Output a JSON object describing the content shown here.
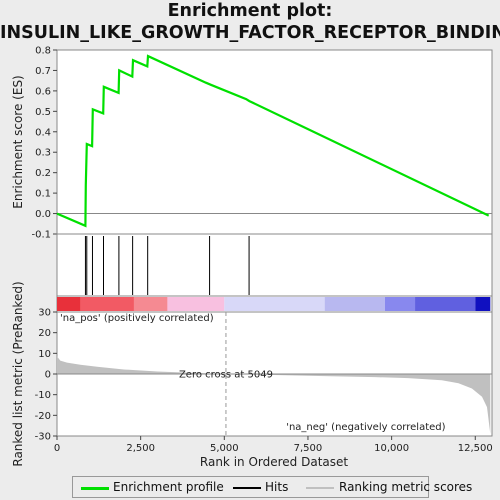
{
  "title": {
    "line1": "Enrichment plot:",
    "line2": "INSULIN_LIKE_GROWTH_FACTOR_RECEPTOR_BINDING"
  },
  "legend": {
    "enrichment_label": "Enrichment profile",
    "hits_label": "Hits",
    "ranking_label": "Ranking metric scores",
    "enrichment_color": "#00e000",
    "hits_color": "#000000",
    "ranking_color": "#c0c0c0"
  },
  "chart_data": [
    {
      "type": "line",
      "name": "enrichment-profile",
      "ylabel": "Enrichment score (ES)",
      "xlim": [
        0,
        13000
      ],
      "ylim": [
        -0.1,
        0.8
      ],
      "yticks": [
        -0.1,
        0.0,
        0.1,
        0.2,
        0.3,
        0.4,
        0.5,
        0.6,
        0.7,
        0.8
      ],
      "ytick_labels": [
        "-0.1",
        "0.0",
        "0.1",
        "0.2",
        "0.3",
        "0.4",
        "0.5",
        "0.6",
        "0.7",
        "0.8"
      ],
      "color": "#00e000",
      "points": [
        [
          0,
          0.0
        ],
        [
          850,
          -0.06
        ],
        [
          860,
          0.14
        ],
        [
          890,
          0.34
        ],
        [
          1050,
          0.33
        ],
        [
          1070,
          0.51
        ],
        [
          1380,
          0.49
        ],
        [
          1400,
          0.62
        ],
        [
          1840,
          0.59
        ],
        [
          1860,
          0.7
        ],
        [
          2250,
          0.67
        ],
        [
          2270,
          0.75
        ],
        [
          2700,
          0.72
        ],
        [
          2720,
          0.77
        ],
        [
          4450,
          0.64
        ],
        [
          4600,
          0.63
        ],
        [
          5650,
          0.56
        ],
        [
          5750,
          0.55
        ],
        [
          12900,
          -0.01
        ]
      ]
    },
    {
      "type": "hits",
      "name": "hits",
      "positions": [
        850,
        890,
        1060,
        1390,
        1850,
        2260,
        2710,
        4560,
        5740
      ]
    },
    {
      "type": "heatmap",
      "name": "rank-color-bar",
      "pos_label": "'na_pos' (positively correlated)",
      "neg_label": "'na_neg' (negatively correlated)",
      "bands": [
        {
          "from": 0,
          "to": 700,
          "color": "#e8303a"
        },
        {
          "from": 700,
          "to": 2300,
          "color": "#f25a64"
        },
        {
          "from": 2300,
          "to": 3300,
          "color": "#f58a92"
        },
        {
          "from": 3300,
          "to": 5000,
          "color": "#f8c0e0"
        },
        {
          "from": 5000,
          "to": 8000,
          "color": "#d8d8f8"
        },
        {
          "from": 8000,
          "to": 9800,
          "color": "#b8b8f0"
        },
        {
          "from": 9800,
          "to": 10700,
          "color": "#8888ee"
        },
        {
          "from": 10700,
          "to": 12500,
          "color": "#6060e0"
        },
        {
          "from": 12500,
          "to": 12950,
          "color": "#1010c0"
        }
      ]
    },
    {
      "type": "area",
      "name": "ranked-list-metric",
      "ylabel": "Ranked list metric (PreRanked)",
      "xlabel": "Rank in Ordered Dataset",
      "xlim": [
        0,
        13000
      ],
      "ylim": [
        -30,
        30
      ],
      "xticks": [
        0,
        2500,
        5000,
        7500,
        10000,
        12500
      ],
      "xtick_labels": [
        "0",
        "2,500",
        "5,000",
        "7,500",
        "10,000",
        "12,500"
      ],
      "yticks": [
        -30,
        -20,
        -10,
        0,
        10,
        20,
        30
      ],
      "ytick_labels": [
        "-30",
        "-20",
        "-10",
        "0",
        "10",
        "20",
        "30"
      ],
      "zero_cross": 5049,
      "zero_cross_label": "Zero cross at 5049",
      "color": "#c0c0c0",
      "points": [
        [
          0,
          8.5
        ],
        [
          100,
          6.5
        ],
        [
          300,
          5.5
        ],
        [
          700,
          4.5
        ],
        [
          1200,
          3.5
        ],
        [
          2000,
          2.2
        ],
        [
          3000,
          1.2
        ],
        [
          4000,
          0.6
        ],
        [
          5049,
          0.0
        ],
        [
          6500,
          -0.5
        ],
        [
          8000,
          -1.0
        ],
        [
          9500,
          -1.5
        ],
        [
          10500,
          -2.0
        ],
        [
          11500,
          -3.0
        ],
        [
          12000,
          -4.5
        ],
        [
          12400,
          -7.0
        ],
        [
          12700,
          -11.0
        ],
        [
          12850,
          -16.0
        ],
        [
          12950,
          -29.0
        ]
      ]
    }
  ]
}
